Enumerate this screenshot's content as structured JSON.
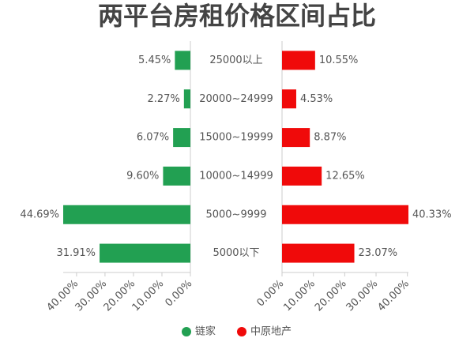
{
  "chart_data": {
    "type": "butterfly-bar",
    "title": "两平台房租价格区间占比",
    "categories": [
      "25000以上",
      "20000~24999",
      "15000~19999",
      "10000~14999",
      "5000~9999",
      "5000以下"
    ],
    "series": [
      {
        "name": "链家",
        "color": "#22a052",
        "values": [
          5.45,
          2.27,
          6.07,
          9.6,
          44.69,
          31.91
        ],
        "value_labels": [
          "5.45%",
          "2.27%",
          "6.07%",
          "9.60%",
          "44.69%",
          "31.91%"
        ]
      },
      {
        "name": "中原地产",
        "color": "#f00a0a",
        "axis": "x2",
        "values": [
          10.55,
          4.53,
          8.87,
          12.65,
          40.33,
          23.07
        ],
        "value_labels": [
          "10.55%",
          "4.53%",
          "8.87%",
          "12.65%",
          "40.33%",
          "23.07%"
        ]
      }
    ],
    "xlim": [
      0,
      44.69
    ],
    "xticks": [
      {
        "value": 0,
        "label": "0.00%"
      },
      {
        "value": 10,
        "label": "10.00%"
      },
      {
        "value": 20,
        "label": "20.00%"
      },
      {
        "value": 30,
        "label": "30.00%"
      },
      {
        "value": 40,
        "label": "40.00%"
      }
    ],
    "x2lim": [
      0,
      40.33
    ],
    "x2ticks": [
      {
        "value": 0,
        "label": "0.00%"
      },
      {
        "value": 10,
        "label": "10.00%"
      },
      {
        "value": 20,
        "label": "20.00%"
      },
      {
        "value": 30,
        "label": "30.00%"
      },
      {
        "value": 40,
        "label": "40.00%"
      }
    ]
  }
}
